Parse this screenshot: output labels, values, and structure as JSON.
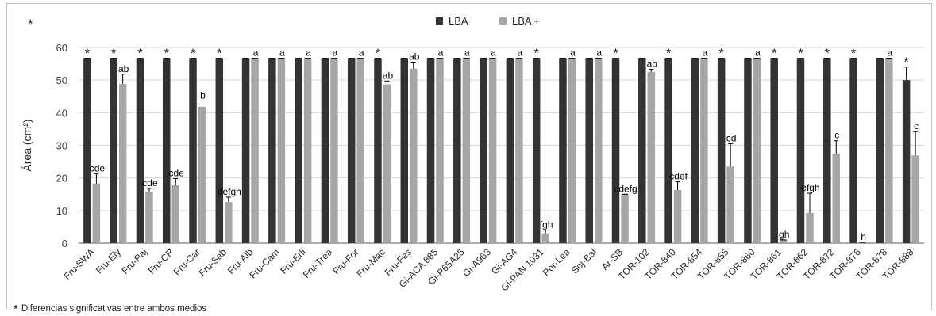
{
  "corner_mark": "*",
  "footnote": {
    "mark": "*",
    "text": "Diferencias significativas entre ambos medios"
  },
  "colors": {
    "LBA": "#333333",
    "LBA+": "#a6a6a6",
    "grid": "#d9d9d9",
    "axis": "#595959"
  },
  "chart_data": {
    "type": "bar",
    "title": "",
    "xlabel": "",
    "ylabel": "Área (cm²)",
    "ylim": [
      0,
      60
    ],
    "yticks": [
      0,
      10,
      20,
      30,
      40,
      50,
      60
    ],
    "grid": true,
    "legend_position": "top-center",
    "categories": [
      "Fru-SWA",
      "Fru-Ely",
      "Fru-Paj",
      "Fru-CR",
      "Fru-Car",
      "Fru-Sab",
      "Fru-Alb",
      "Fru-Cam",
      "Fru-Erli",
      "Fru-Trea",
      "Fru-For",
      "Fru-Mac",
      "Fru-Fes",
      "Gi-ACA 885",
      "Gi-P65A25",
      "Gi-A963",
      "Gi-AG4",
      "Gi-PAN 1031",
      "Por-Lea",
      "Soj-Bal",
      "Ar-SB",
      "TOR-102",
      "TOR-840",
      "TOR-854",
      "TOR-855",
      "TOR-860",
      "TOR-861",
      "TOR-862",
      "TOR-872",
      "TOR-876",
      "TOR-878",
      "TOR-888"
    ],
    "series": [
      {
        "name": "LBA",
        "values": [
          56.7,
          56.7,
          56.7,
          56.7,
          56.7,
          56.7,
          56.7,
          56.7,
          56.7,
          56.7,
          56.7,
          56.7,
          56.7,
          56.7,
          56.7,
          56.7,
          56.7,
          56.7,
          56.7,
          56.7,
          56.7,
          56.7,
          56.7,
          56.7,
          56.7,
          56.7,
          56.7,
          56.7,
          56.7,
          56.7,
          56.7,
          50
        ],
        "errors": [
          0,
          0,
          0,
          0,
          0,
          0,
          0,
          0,
          0,
          0,
          0,
          0,
          0,
          0,
          0,
          0,
          0,
          0,
          0,
          0,
          0,
          0,
          0,
          0,
          0,
          0,
          0,
          0,
          0,
          0,
          0,
          4
        ]
      },
      {
        "name": "LBA +",
        "values": [
          18.3,
          48.8,
          15.8,
          17.8,
          41.8,
          12.6,
          56.7,
          56.7,
          56.7,
          56.7,
          56.7,
          48.7,
          53.5,
          56.7,
          56.7,
          56.7,
          56.7,
          3,
          56.7,
          56.7,
          15,
          52.5,
          16.3,
          56.7,
          23.5,
          56.7,
          1,
          9.3,
          27.4,
          0.2,
          56.7,
          26.9
        ],
        "errors": [
          3,
          3,
          1,
          2,
          1.8,
          1.5,
          0,
          0,
          0,
          0,
          0,
          1,
          2,
          0,
          0,
          0,
          0,
          1,
          0,
          0,
          0,
          0.8,
          2.5,
          0,
          7,
          0,
          0,
          6,
          4,
          0,
          0,
          7.3
        ]
      }
    ],
    "annotations": {
      "significance_marks": [
        "*",
        "*",
        "*",
        "*",
        "*",
        "*",
        "",
        "",
        "",
        "",
        "",
        "*",
        "",
        "",
        "",
        "",
        "",
        "*",
        "",
        "",
        "*",
        "",
        "*",
        "",
        "*",
        "",
        "*",
        "*",
        "*",
        "*",
        "",
        "*"
      ],
      "letters": [
        "cde",
        "ab",
        "cde",
        "cde",
        "b",
        "defgh",
        "a",
        "a",
        "a",
        "a",
        "a",
        "ab",
        "ab",
        "a",
        "a",
        "a",
        "a",
        "fgh",
        "a",
        "a",
        "cdefg",
        "ab",
        "cdef",
        "a",
        "cd",
        "a",
        "gh",
        "efgh",
        "c",
        "h",
        "a",
        "c"
      ]
    }
  }
}
